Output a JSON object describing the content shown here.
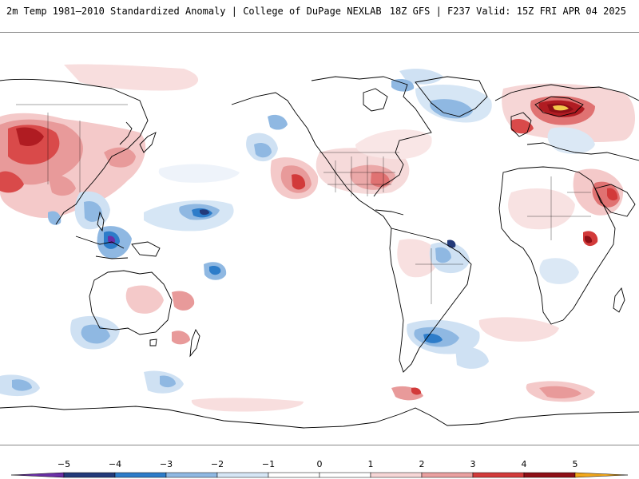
{
  "header": {
    "title_left": "2m Temp 1981–2010 Standardized Anomaly | College of DuPage NEXLAB",
    "title_right": "18Z GFS | F237 Valid: 15Z FRI APR 04 2025"
  },
  "map": {
    "projection": "equirectangular world, Pacific-centered",
    "background": "#ffffff",
    "coastline_color": "#000000"
  },
  "legend": {
    "ticks": [
      "−5",
      "−4",
      "−3",
      "−2",
      "−1",
      "0",
      "1",
      "2",
      "3",
      "4",
      "5"
    ],
    "colors": [
      "#6a2fa6",
      "#233a7a",
      "#2d7cc9",
      "#8fb8e2",
      "#d6e6f5",
      "#ffffff",
      "#ffffff",
      "#f6d6d6",
      "#e9a0a0",
      "#d23a3a",
      "#8e0f16",
      "#f2a71b"
    ]
  }
}
